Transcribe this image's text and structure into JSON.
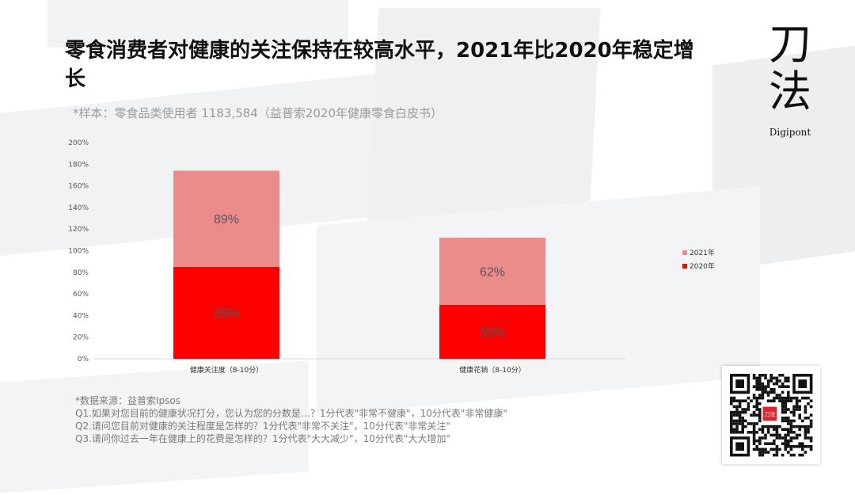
{
  "page": {
    "title": "零食消费者对健康的关注保持在较高水平，2021年比2020年稳定增长",
    "subtitle": "*样本：零食品类使用者 1183,584（益普索2020年健康零食白皮书）"
  },
  "brand": {
    "name_cn": "刀法",
    "name_en": "Digipont",
    "qr_label": "刀法"
  },
  "chart_data": {
    "type": "bar",
    "stacked": true,
    "categories": [
      "健康关注度（8-10分）",
      "健康花销（8-10分）"
    ],
    "series": [
      {
        "name": "2020年",
        "values": [
          85,
          50
        ],
        "labels": [
          "85%",
          "50%"
        ],
        "color": "#ff0000"
      },
      {
        "name": "2021年",
        "values": [
          89,
          62
        ],
        "labels": [
          "89%",
          "62%"
        ],
        "color": "#eb8b8b"
      }
    ],
    "ylim": [
      0,
      200
    ],
    "yticks": [
      "0%",
      "20%",
      "40%",
      "60%",
      "80%",
      "100%",
      "120%",
      "140%",
      "160%",
      "180%",
      "200%"
    ],
    "legend": "right",
    "grid": false
  },
  "footer": {
    "source": "*数据来源：益普索Ipsos",
    "q1": "Q1.如果对您目前的健康状况打分，您认为您的分数是…？1分代表\"非常不健康\"，10分代表\"非常健康\"",
    "q2": "Q2.请问您目前对健康的关注程度是怎样的？1分代表\"非常不关注\"，10分代表\"非常关注\"",
    "q3": "Q3.请问你过去一年在健康上的花费是怎样的？1分代表\"大大减少\"，10分代表\"大大增加\""
  }
}
